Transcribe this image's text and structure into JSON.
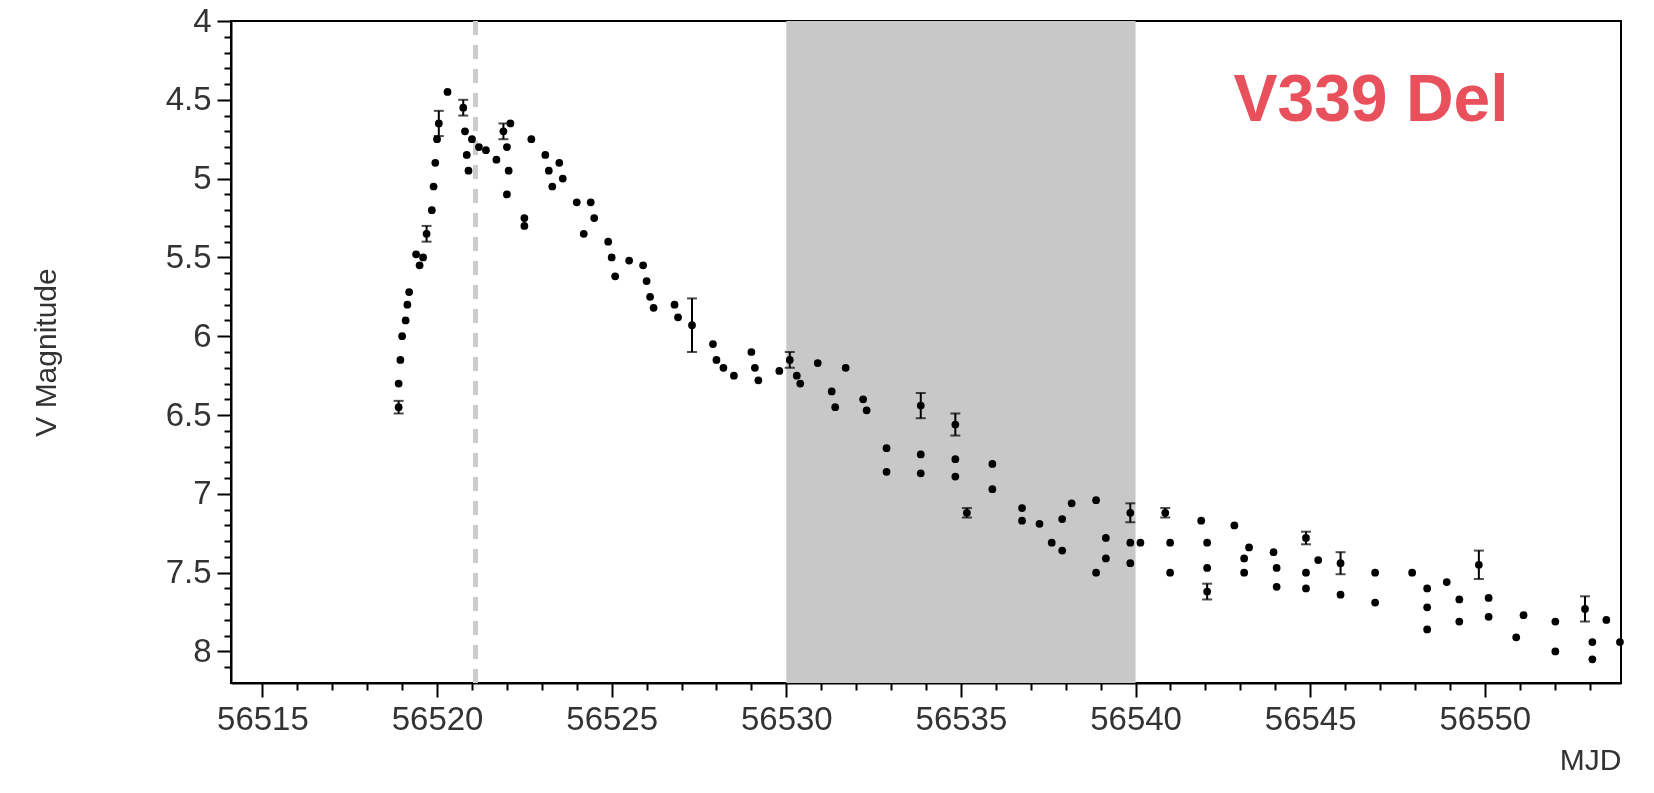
{
  "chart_data": {
    "type": "scatter",
    "xlabel": "MJD",
    "ylabel": "V Magnitude",
    "annotations": [
      "V339 Del"
    ],
    "marker": "circle",
    "grid": false,
    "xlim": [
      56514.1,
      56553.9
    ],
    "ylim": [
      8.2,
      4
    ],
    "xticks": [
      56515,
      {
        "value": 56516,
        "label": null
      },
      {
        "value": 56517,
        "label": null
      },
      {
        "value": 56518,
        "label": null
      },
      {
        "value": 56519,
        "label": null
      },
      56520,
      {
        "value": 56521,
        "label": null
      },
      {
        "value": 56522,
        "label": null
      },
      {
        "value": 56523,
        "label": null
      },
      {
        "value": 56524,
        "label": null
      },
      56525,
      {
        "value": 56526,
        "label": null
      },
      {
        "value": 56527,
        "label": null
      },
      {
        "value": 56528,
        "label": null
      },
      {
        "value": 56529,
        "label": null
      },
      56530,
      {
        "value": 56531,
        "label": null
      },
      {
        "value": 56532,
        "label": null
      },
      {
        "value": 56533,
        "label": null
      },
      {
        "value": 56534,
        "label": null
      },
      56535,
      {
        "value": 56536,
        "label": null
      },
      {
        "value": 56537,
        "label": null
      },
      {
        "value": 56538,
        "label": null
      },
      {
        "value": 56539,
        "label": null
      },
      56540,
      {
        "value": 56541,
        "label": null
      },
      {
        "value": 56542,
        "label": null
      },
      {
        "value": 56543,
        "label": null
      },
      {
        "value": 56544,
        "label": null
      },
      56545,
      {
        "value": 56546,
        "label": null
      },
      {
        "value": 56547,
        "label": null
      },
      {
        "value": 56548,
        "label": null
      },
      {
        "value": 56549,
        "label": null
      },
      56550,
      {
        "value": 56551,
        "label": null
      },
      {
        "value": 56552,
        "label": null
      },
      {
        "value": 56553,
        "label": null
      }
    ],
    "yticks": [
      4,
      {
        "value": 4.1,
        "label": null
      },
      {
        "value": 4.2,
        "label": null
      },
      {
        "value": 4.3,
        "label": null
      },
      {
        "value": 4.4,
        "label": null
      },
      4.5,
      {
        "value": 4.6,
        "label": null
      },
      {
        "value": 4.7,
        "label": null
      },
      {
        "value": 4.8,
        "label": null
      },
      {
        "value": 4.9,
        "label": null
      },
      5,
      {
        "value": 5.1,
        "label": null
      },
      {
        "value": 5.2,
        "label": null
      },
      {
        "value": 5.3,
        "label": null
      },
      {
        "value": 5.4,
        "label": null
      },
      5.5,
      {
        "value": 5.6,
        "label": null
      },
      {
        "value": 5.7,
        "label": null
      },
      {
        "value": 5.8,
        "label": null
      },
      {
        "value": 5.9,
        "label": null
      },
      6,
      {
        "value": 6.1,
        "label": null
      },
      {
        "value": 6.2,
        "label": null
      },
      {
        "value": 6.3,
        "label": null
      },
      {
        "value": 6.4,
        "label": null
      },
      6.5,
      {
        "value": 6.6,
        "label": null
      },
      {
        "value": 6.7,
        "label": null
      },
      {
        "value": 6.8,
        "label": null
      },
      {
        "value": 6.9,
        "label": null
      },
      7,
      {
        "value": 7.1,
        "label": null
      },
      {
        "value": 7.2,
        "label": null
      },
      {
        "value": 7.3,
        "label": null
      },
      {
        "value": 7.4,
        "label": null
      },
      7.5,
      {
        "value": 7.6,
        "label": null
      },
      {
        "value": 7.7,
        "label": null
      },
      {
        "value": 7.8,
        "label": null
      },
      {
        "value": 7.9,
        "label": null
      },
      8,
      {
        "value": 8.1,
        "label": null
      }
    ],
    "ref_lines": [
      {
        "axis": "x",
        "value": 56521.1,
        "color": "#cccccc",
        "line_style": "dashed"
      }
    ],
    "bands": [
      {
        "axis": "x",
        "from": 56530,
        "to": 56540,
        "color": "#c8c8c8"
      }
    ],
    "series": [
      {
        "color": "#000000",
        "x": [
          56518.9,
          56518.9,
          56518.95,
          56519.0,
          56519.1,
          56519.15,
          56519.2,
          56519.4,
          56519.5,
          56519.6,
          56519.7,
          56519.85,
          56519.9,
          56519.95,
          56520.0,
          56520.05,
          56520.3,
          56520.75,
          56520.8,
          56520.85,
          56520.9,
          56521.0,
          56521.2,
          56521.4,
          56521.7,
          56521.9,
          56522.0,
          56522.05,
          56522.1,
          56522.0,
          56522.5,
          56522.5,
          56522.7,
          56523.1,
          56523.2,
          56523.3,
          56523.5,
          56523.6,
          56524.0,
          56524.2,
          56524.4,
          56524.5,
          56524.9,
          56525.0,
          56525.1,
          56525.5,
          56525.9,
          56526.0,
          56526.1,
          56526.2,
          56526.8,
          56526.9,
          56527.3,
          56527.9,
          56528.0,
          56528.2,
          56528.5,
          56529.0,
          56529.1,
          56529.2,
          56529.8,
          56530.1,
          56530.3,
          56530.4,
          56530.9,
          56531.3,
          56531.4,
          56531.7,
          56532.2,
          56532.3,
          56532.87,
          56532.87,
          56533.85,
          56533.85,
          56533.85,
          56534.84,
          56534.84,
          56534.84,
          56535.17,
          56535.9,
          56535.9,
          56536.75,
          56536.75,
          56537.25,
          56537.6,
          56537.9,
          56537.9,
          56538.17,
          56538.87,
          56538.87,
          56539.15,
          56539.15,
          56539.85,
          56539.85,
          56539.85,
          56540.14,
          56540.85,
          56540.99,
          56540.99,
          56541.88,
          56542.05,
          56542.05,
          56542.05,
          56542.83,
          56543.11,
          56543.11,
          56543.25,
          56543.95,
          56544.04,
          56544.04,
          56544.88,
          56544.88,
          56544.88,
          56545.23,
          56545.87,
          56545.87,
          56546.86,
          56546.86,
          56547.92,
          56548.35,
          56548.35,
          56548.35,
          56548.91,
          56549.27,
          56549.27,
          56549.83,
          56550.11,
          56550.11,
          56551.11,
          56550.9,
          56552.02,
          56552.02,
          56552.87,
          56553.08,
          56553.08,
          56553.48,
          56553.87
        ],
        "values": [
          6.45,
          6.3,
          6.15,
          6.0,
          5.9,
          5.8,
          5.72,
          5.48,
          5.55,
          5.5,
          5.35,
          5.2,
          5.05,
          4.9,
          4.75,
          4.65,
          4.45,
          4.55,
          4.7,
          4.85,
          4.95,
          4.75,
          4.8,
          4.82,
          4.88,
          4.7,
          4.8,
          4.95,
          4.65,
          5.1,
          5.25,
          5.3,
          4.75,
          4.85,
          4.95,
          5.05,
          4.9,
          5.0,
          5.15,
          5.35,
          5.15,
          5.25,
          5.4,
          5.5,
          5.62,
          5.52,
          5.55,
          5.65,
          5.75,
          5.82,
          5.8,
          5.88,
          5.93,
          6.05,
          6.15,
          6.2,
          6.25,
          6.1,
          6.2,
          6.28,
          6.22,
          6.15,
          6.25,
          6.3,
          6.17,
          6.35,
          6.45,
          6.2,
          6.4,
          6.47,
          6.71,
          6.86,
          6.44,
          6.75,
          6.87,
          6.56,
          6.78,
          6.89,
          7.12,
          6.81,
          6.97,
          7.09,
          7.17,
          7.19,
          7.31,
          7.16,
          7.36,
          7.06,
          7.04,
          7.5,
          7.28,
          7.41,
          7.12,
          7.31,
          7.44,
          7.31,
          7.12,
          7.31,
          7.5,
          7.17,
          7.31,
          7.47,
          7.62,
          7.2,
          7.41,
          7.5,
          7.34,
          7.37,
          7.47,
          7.59,
          7.28,
          7.5,
          7.6,
          7.42,
          7.44,
          7.64,
          7.5,
          7.69,
          7.5,
          7.6,
          7.72,
          7.86,
          7.56,
          7.67,
          7.81,
          7.45,
          7.66,
          7.78,
          7.77,
          7.91,
          7.81,
          8.0,
          7.73,
          7.94,
          8.05,
          7.8,
          7.94
        ],
        "errors": [
          0.04,
          null,
          null,
          null,
          null,
          null,
          null,
          null,
          null,
          null,
          0.05,
          null,
          null,
          null,
          null,
          0.08,
          null,
          0.05,
          null,
          null,
          null,
          null,
          null,
          null,
          null,
          0.05,
          null,
          null,
          null,
          null,
          null,
          null,
          null,
          null,
          null,
          null,
          null,
          null,
          null,
          null,
          null,
          null,
          null,
          null,
          null,
          null,
          null,
          null,
          null,
          null,
          null,
          null,
          0.17,
          null,
          null,
          null,
          null,
          null,
          null,
          null,
          null,
          0.05,
          null,
          null,
          null,
          null,
          null,
          null,
          null,
          null,
          null,
          null,
          0.08,
          null,
          null,
          0.07,
          null,
          null,
          0.03,
          null,
          null,
          null,
          null,
          null,
          null,
          null,
          null,
          null,
          null,
          null,
          null,
          null,
          0.06,
          null,
          null,
          null,
          0.03,
          null,
          null,
          null,
          null,
          null,
          0.05,
          null,
          null,
          null,
          null,
          null,
          null,
          null,
          0.04,
          null,
          null,
          null,
          0.07,
          null,
          null,
          null,
          null,
          null,
          null,
          null,
          null,
          null,
          null,
          0.09,
          null,
          null,
          null,
          null,
          null,
          null,
          0.08,
          null,
          null,
          null,
          null
        ]
      }
    ]
  }
}
